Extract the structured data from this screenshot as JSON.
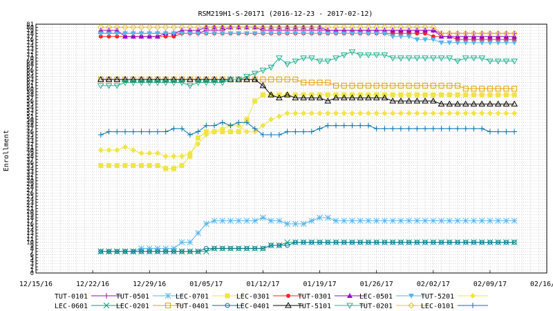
{
  "chart_data": {
    "type": "line",
    "title": "RSM219H1-S-20171 (2016-12-23 - 2017-02-12)",
    "ylabel": "Enrollment",
    "xlabel": "",
    "xlim": [
      "2016-12-15",
      "2017-02-16"
    ],
    "ylim": [
      0,
      81
    ],
    "grid": true,
    "legend_position": "bottom",
    "x_ticks": [
      "12/15/16",
      "12/22/16",
      "12/29/16",
      "01/05/17",
      "01/12/17",
      "01/19/17",
      "01/26/17",
      "02/02/17",
      "02/09/17",
      "02/16/17"
    ],
    "x_tick_dates": [
      "2016-12-15",
      "2016-12-22",
      "2016-12-29",
      "2017-01-05",
      "2017-01-12",
      "2017-01-19",
      "2017-01-26",
      "2017-02-02",
      "2017-02-09",
      "2017-02-16"
    ],
    "y_ticks": [
      0,
      1,
      2,
      3,
      4,
      5,
      6,
      7,
      8,
      9,
      10,
      11,
      12,
      13,
      14,
      15,
      16,
      17,
      18,
      19,
      20,
      21,
      22,
      23,
      24,
      25,
      26,
      27,
      28,
      29,
      30,
      31,
      32,
      33,
      34,
      35,
      36,
      37,
      38,
      39,
      40,
      41,
      42,
      43,
      44,
      45,
      46,
      47,
      48,
      49,
      50,
      51,
      52,
      53,
      54,
      55,
      56,
      57,
      58,
      59,
      60,
      61,
      62,
      63,
      64,
      65,
      66,
      67,
      68,
      69,
      70,
      71,
      72,
      73,
      74,
      75,
      76,
      77,
      78,
      79,
      80,
      81
    ],
    "x_dates": [
      "2016-12-23",
      "2016-12-24",
      "2016-12-25",
      "2016-12-26",
      "2016-12-27",
      "2016-12-28",
      "2016-12-29",
      "2016-12-30",
      "2016-12-31",
      "2017-01-01",
      "2017-01-02",
      "2017-01-03",
      "2017-01-04",
      "2017-01-05",
      "2017-01-06",
      "2017-01-07",
      "2017-01-08",
      "2017-01-09",
      "2017-01-10",
      "2017-01-11",
      "2017-01-12",
      "2017-01-13",
      "2017-01-14",
      "2017-01-15",
      "2017-01-16",
      "2017-01-17",
      "2017-01-18",
      "2017-01-19",
      "2017-01-20",
      "2017-01-21",
      "2017-01-22",
      "2017-01-23",
      "2017-01-24",
      "2017-01-25",
      "2017-01-26",
      "2017-01-27",
      "2017-01-28",
      "2017-01-29",
      "2017-01-30",
      "2017-01-31",
      "2017-02-01",
      "2017-02-02",
      "2017-02-03",
      "2017-02-04",
      "2017-02-05",
      "2017-02-06",
      "2017-02-07",
      "2017-02-08",
      "2017-02-09",
      "2017-02-10",
      "2017-02-11",
      "2017-02-12"
    ],
    "series": [
      {
        "name": "TUT-0101",
        "color": "#a000c8",
        "marker": "plus",
        "values": [
          78,
          78,
          78,
          78,
          78,
          78,
          78,
          78,
          78,
          78,
          78,
          78,
          78,
          79,
          79,
          79,
          80,
          80,
          80,
          80,
          79,
          79,
          79,
          79,
          79,
          79,
          79,
          79,
          79,
          79,
          79,
          79,
          79,
          79,
          79,
          79,
          79,
          79,
          79,
          79,
          79,
          79,
          78,
          78,
          78,
          78,
          78,
          78,
          78,
          78,
          78,
          78
        ]
      },
      {
        "name": "TUT-0501",
        "color": "#56b4e9",
        "marker": "asterisk",
        "values": [
          7,
          7,
          7,
          7,
          7,
          8,
          8,
          8,
          8,
          8,
          10,
          10,
          13,
          16,
          17,
          17,
          17,
          17,
          17,
          17,
          18,
          17,
          17,
          16,
          16,
          16,
          17,
          18,
          18,
          17,
          17,
          17,
          17,
          17,
          17,
          17,
          17,
          17,
          17,
          17,
          17,
          17,
          17,
          17,
          17,
          17,
          17,
          17,
          17,
          17,
          17,
          17
        ]
      },
      {
        "name": "LEC-0701",
        "color": "#f0e442",
        "marker": "filled-square",
        "values": [
          35,
          35,
          35,
          35,
          35,
          35,
          35,
          35,
          34,
          34,
          35,
          38,
          44,
          46,
          46,
          46,
          46,
          46,
          50,
          56,
          58,
          58,
          58,
          58,
          58,
          58,
          58,
          58,
          58,
          58,
          58,
          58,
          58,
          58,
          58,
          58,
          58,
          58,
          58,
          58,
          58,
          58,
          58,
          58,
          58,
          58,
          58,
          58,
          58,
          58,
          58,
          58
        ]
      },
      {
        "name": "LEC-0301",
        "color": "#ff2020",
        "marker": "filled-circle",
        "values": [
          77,
          77,
          77,
          77,
          77,
          77,
          77,
          77,
          77,
          77,
          78,
          78,
          78,
          78,
          78,
          78,
          78,
          78,
          78,
          78,
          78,
          78,
          78,
          78,
          78,
          78,
          78,
          78,
          78,
          78,
          78,
          78,
          78,
          78,
          78,
          78,
          78,
          78,
          78,
          78,
          78,
          77,
          77,
          77,
          76,
          76,
          76,
          76,
          76,
          76,
          76,
          76
        ]
      },
      {
        "name": "TUT-0301",
        "color": "#9400d3",
        "marker": "filled-triangle",
        "values": [
          79,
          79,
          79,
          77,
          77,
          77,
          77,
          77,
          78,
          78,
          79,
          79,
          79,
          80,
          80,
          80,
          80,
          80,
          80,
          80,
          80,
          80,
          80,
          80,
          80,
          80,
          80,
          80,
          79,
          79,
          79,
          79,
          79,
          79,
          79,
          79,
          79,
          79,
          79,
          79,
          79,
          79,
          77,
          77,
          77,
          77,
          77,
          77,
          77,
          77,
          77,
          77
        ]
      },
      {
        "name": "LEC-0501",
        "color": "#56b4e9",
        "marker": "filled-inv-triangle",
        "values": [
          78,
          78,
          78,
          78,
          78,
          78,
          78,
          78,
          78,
          78,
          78,
          78,
          78,
          78,
          78,
          78,
          78,
          78,
          78,
          78,
          78,
          78,
          78,
          78,
          78,
          78,
          78,
          78,
          78,
          78,
          78,
          78,
          78,
          78,
          78,
          78,
          77,
          77,
          77,
          76,
          76,
          76,
          75,
          75,
          75,
          75,
          75,
          75,
          75,
          75,
          75,
          75
        ]
      },
      {
        "name": "TUT-5201",
        "color": "#f0e442",
        "marker": "filled-diamond",
        "values": [
          40,
          40,
          40,
          41,
          40,
          39,
          39,
          39,
          38,
          38,
          38,
          39,
          42,
          45,
          46,
          47,
          48,
          48,
          46,
          46,
          48,
          50,
          51,
          52,
          52,
          52,
          52,
          52,
          52,
          52,
          52,
          52,
          52,
          52,
          52,
          52,
          52,
          52,
          52,
          52,
          52,
          52,
          52,
          52,
          52,
          52,
          52,
          52,
          52,
          52,
          52,
          52
        ]
      },
      {
        "name": "LEC-0601",
        "color": "#009e73",
        "marker": "x",
        "values": [
          7,
          7,
          7,
          7,
          7,
          7,
          7,
          7,
          7,
          7,
          7,
          7,
          7,
          7,
          8,
          8,
          8,
          8,
          8,
          8,
          8,
          9,
          9,
          10,
          10,
          10,
          10,
          10,
          10,
          10,
          10,
          10,
          10,
          10,
          10,
          10,
          10,
          10,
          10,
          10,
          10,
          10,
          10,
          10,
          10,
          10,
          10,
          10,
          10,
          10,
          10,
          10
        ]
      },
      {
        "name": "LEC-0201",
        "color": "#e69f00",
        "marker": "open-square",
        "values": [
          63,
          63,
          63,
          63,
          63,
          63,
          63,
          63,
          63,
          63,
          63,
          63,
          63,
          63,
          63,
          63,
          63,
          63,
          63,
          63,
          63,
          63,
          63,
          63,
          63,
          62,
          62,
          62,
          62,
          61,
          61,
          61,
          61,
          61,
          61,
          61,
          61,
          61,
          61,
          61,
          61,
          61,
          61,
          61,
          61,
          60,
          60,
          60,
          60,
          60,
          60,
          60
        ]
      },
      {
        "name": "TUT-0401",
        "color": "#007090",
        "marker": "open-circle",
        "values": [
          7,
          7,
          7,
          7,
          7,
          7,
          7,
          7,
          7,
          7,
          7,
          7,
          7,
          8,
          8,
          8,
          8,
          8,
          8,
          8,
          8,
          9,
          9,
          9,
          10,
          10,
          10,
          10,
          10,
          10,
          10,
          10,
          10,
          10,
          10,
          10,
          10,
          10,
          10,
          10,
          10,
          10,
          10,
          10,
          10,
          10,
          10,
          10,
          10,
          10,
          10,
          10
        ]
      },
      {
        "name": "LEC-0401",
        "color": "#000000",
        "marker": "open-triangle",
        "values": [
          63,
          63,
          63,
          63,
          63,
          63,
          63,
          63,
          63,
          63,
          63,
          63,
          63,
          63,
          63,
          63,
          63,
          63,
          63,
          63,
          61,
          58,
          57,
          58,
          57,
          57,
          57,
          57,
          56,
          57,
          57,
          57,
          57,
          57,
          57,
          57,
          56,
          56,
          56,
          56,
          56,
          56,
          55,
          55,
          55,
          55,
          55,
          55,
          55,
          55,
          55,
          55
        ]
      },
      {
        "name": "TUT-5101",
        "color": "#20b090",
        "marker": "open-inv-triangle",
        "values": [
          61,
          61,
          61,
          62,
          62,
          62,
          62,
          62,
          62,
          62,
          62,
          61,
          62,
          62,
          62,
          62,
          63,
          63,
          64,
          65,
          66,
          67,
          70,
          68,
          69,
          70,
          70,
          69,
          69,
          70,
          71,
          72,
          71,
          71,
          71,
          71,
          70,
          70,
          70,
          70,
          70,
          70,
          70,
          70,
          69,
          70,
          70,
          70,
          69,
          69,
          69,
          69
        ]
      },
      {
        "name": "TUT-0201",
        "color": "#e8c020",
        "marker": "open-diamond",
        "values": [
          80,
          80,
          80,
          80,
          80,
          80,
          80,
          80,
          80,
          80,
          80,
          80,
          80,
          80,
          80,
          80,
          80,
          80,
          80,
          80,
          80,
          80,
          80,
          80,
          80,
          80,
          80,
          80,
          80,
          80,
          80,
          80,
          80,
          80,
          80,
          80,
          80,
          80,
          80,
          80,
          80,
          80,
          78,
          78,
          78,
          78,
          78,
          78,
          78,
          78,
          78,
          78
        ]
      },
      {
        "name": "LEC-0101",
        "color": "#006fb0",
        "marker": "plus",
        "values": [
          45,
          46,
          46,
          46,
          46,
          46,
          46,
          46,
          46,
          47,
          47,
          45,
          46,
          48,
          48,
          49,
          48,
          49,
          49,
          47,
          45,
          45,
          45,
          46,
          46,
          46,
          46,
          47,
          48,
          48,
          48,
          48,
          48,
          48,
          47,
          47,
          47,
          47,
          47,
          47,
          47,
          47,
          47,
          47,
          47,
          47,
          47,
          47,
          46,
          46,
          46,
          46
        ]
      }
    ]
  }
}
